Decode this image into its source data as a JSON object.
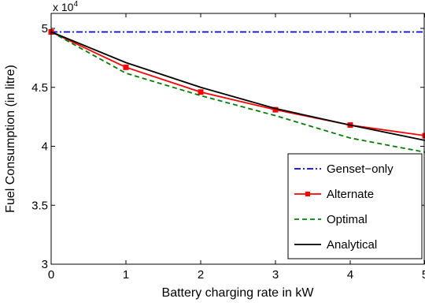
{
  "chart_data": {
    "type": "line",
    "xlabel": "Battery charging rate in kW",
    "ylabel": "Fuel Consumption (in litre)",
    "y_multiplier_base": "x 10",
    "y_multiplier_exp": "4",
    "xlim": [
      0,
      5
    ],
    "ylim": [
      3,
      5
    ],
    "x_ticks": [
      0,
      1,
      2,
      3,
      4,
      5
    ],
    "x_tick_labels": [
      "0",
      "1",
      "2",
      "3",
      "4",
      "5"
    ],
    "y_ticks": [
      3,
      3.5,
      4,
      4.5,
      5
    ],
    "y_tick_labels": [
      "3",
      "3.5",
      "4",
      "4.5",
      "5"
    ],
    "grid": false,
    "legend_position": "bottom-right",
    "series": [
      {
        "name": "Genset−only",
        "color": "#0000ff",
        "style": "dash-dot",
        "marker": "none",
        "x": [
          0,
          5
        ],
        "y": [
          4.97,
          4.97
        ]
      },
      {
        "name": "Alternate",
        "color": "#ff0000",
        "style": "solid",
        "marker": "square",
        "x": [
          0,
          1,
          2,
          3,
          4,
          5
        ],
        "y": [
          4.97,
          4.67,
          4.46,
          4.31,
          4.18,
          4.09
        ]
      },
      {
        "name": "Optimal",
        "color": "#008000",
        "style": "dashed",
        "marker": "none",
        "x": [
          0,
          1,
          2,
          3,
          4,
          5
        ],
        "y": [
          4.97,
          4.62,
          4.43,
          4.26,
          4.07,
          3.95
        ]
      },
      {
        "name": "Analytical",
        "color": "#000000",
        "style": "solid",
        "marker": "none",
        "x": [
          0,
          1,
          2,
          3,
          4,
          5
        ],
        "y": [
          4.97,
          4.71,
          4.5,
          4.32,
          4.18,
          4.05
        ]
      }
    ]
  }
}
